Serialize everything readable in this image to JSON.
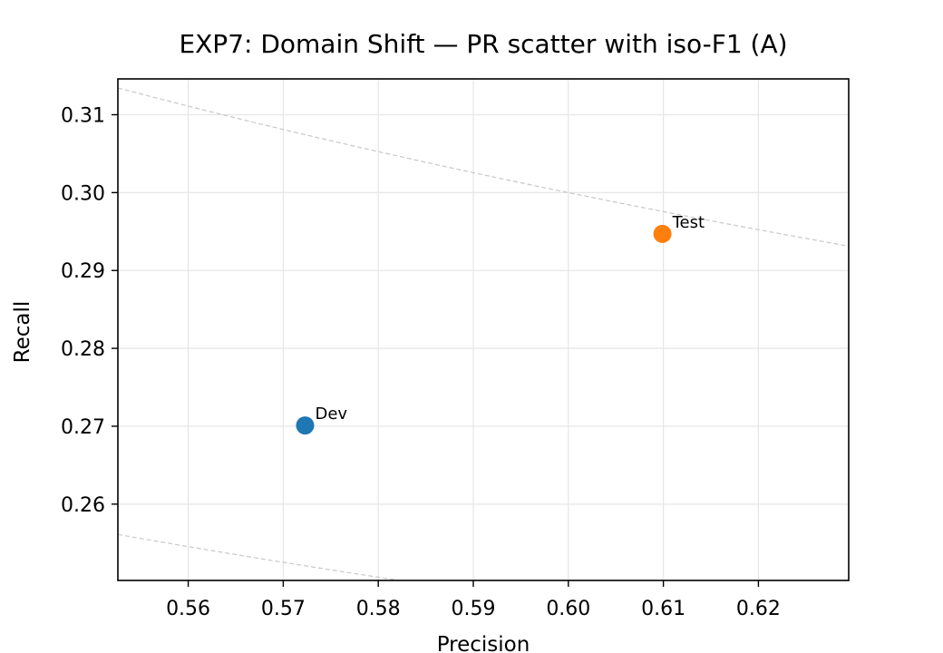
{
  "chart_data": {
    "type": "scatter",
    "title": "EXP7: Domain Shift — PR scatter with iso-F1 (A)",
    "xlabel": "Precision",
    "ylabel": "Recall",
    "xlim": [
      0.5526,
      0.6295
    ],
    "ylim": [
      0.2502,
      0.3146
    ],
    "xticks": [
      0.56,
      0.57,
      0.58,
      0.59,
      0.6,
      0.61,
      0.62
    ],
    "xtick_labels": [
      "0.56",
      "0.57",
      "0.58",
      "0.59",
      "0.60",
      "0.61",
      "0.62"
    ],
    "yticks": [
      0.26,
      0.27,
      0.28,
      0.29,
      0.3,
      0.31
    ],
    "ytick_labels": [
      "0.26",
      "0.27",
      "0.28",
      "0.29",
      "0.30",
      "0.31"
    ],
    "grid": true,
    "iso_f1_curves": [
      0.35,
      0.4
    ],
    "points": [
      {
        "label": "Dev",
        "x": 0.5723,
        "y": 0.2701,
        "color": "#1f77b4"
      },
      {
        "label": "Test",
        "x": 0.6099,
        "y": 0.2947,
        "color": "#ff7f0e"
      }
    ]
  }
}
